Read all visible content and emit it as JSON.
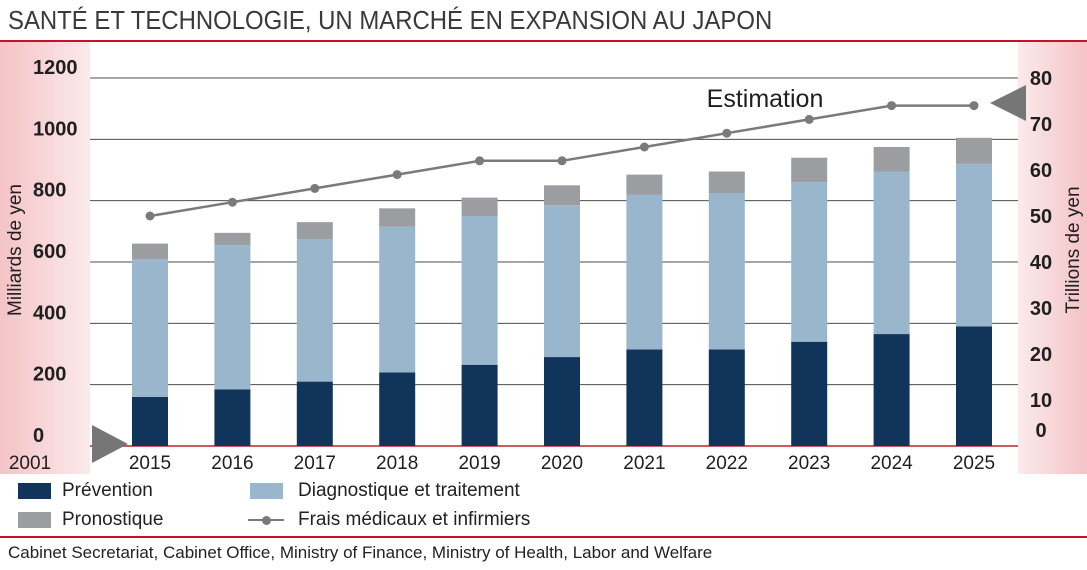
{
  "source": "Cabinet Secretariat, Cabinet Office, Ministry of Finance, Ministry of Health, Labor and Welfare",
  "colors": {
    "accent": "#c8102e",
    "axis_band": "#f4c3c6",
    "gridline": "#4d4d4d",
    "baseline": "#b5262e",
    "arrow": "#767676"
  },
  "chart_data": {
    "type": "bar",
    "stacked": true,
    "title": "SANTÉ ET TECHNOLOGIE, UN MARCHÉ EN EXPANSION AU JAPON",
    "x_axis_start_label": "2001",
    "categories": [
      "2015",
      "2016",
      "2017",
      "2018",
      "2019",
      "2020",
      "2021",
      "2022",
      "2023",
      "2024",
      "2025"
    ],
    "series": [
      {
        "name": "Prévention",
        "type": "bar",
        "axis": "left",
        "color": "#11355a",
        "values": [
          160,
          185,
          210,
          240,
          265,
          290,
          315,
          315,
          340,
          365,
          390
        ]
      },
      {
        "name": "Diagnostique et traitement",
        "type": "bar",
        "axis": "left",
        "color": "#99b6cc",
        "values": [
          450,
          470,
          465,
          475,
          485,
          495,
          505,
          510,
          520,
          530,
          530
        ]
      },
      {
        "name": "Pronostique",
        "type": "bar",
        "axis": "left",
        "color": "#9c9da1",
        "values": [
          50,
          40,
          55,
          60,
          60,
          65,
          65,
          70,
          80,
          80,
          85
        ]
      },
      {
        "name": "Frais médicaux et infirmiers",
        "type": "line",
        "axis": "right",
        "color": "#7a7a7a",
        "values": [
          50,
          53,
          56,
          59,
          62,
          62,
          65,
          68,
          71,
          74,
          74
        ]
      }
    ],
    "ylabel": "Milliards de yen",
    "ylim": [
      0,
      1200
    ],
    "yticks": [
      0,
      200,
      400,
      600,
      800,
      1000,
      1200
    ],
    "y2label": "Trillions de yen",
    "y2lim": [
      0,
      80
    ],
    "y2ticks": [
      0,
      10,
      20,
      30,
      40,
      50,
      60,
      70,
      80
    ],
    "annotations": [
      "Estimation"
    ],
    "grid": true,
    "legend": "bottom"
  }
}
